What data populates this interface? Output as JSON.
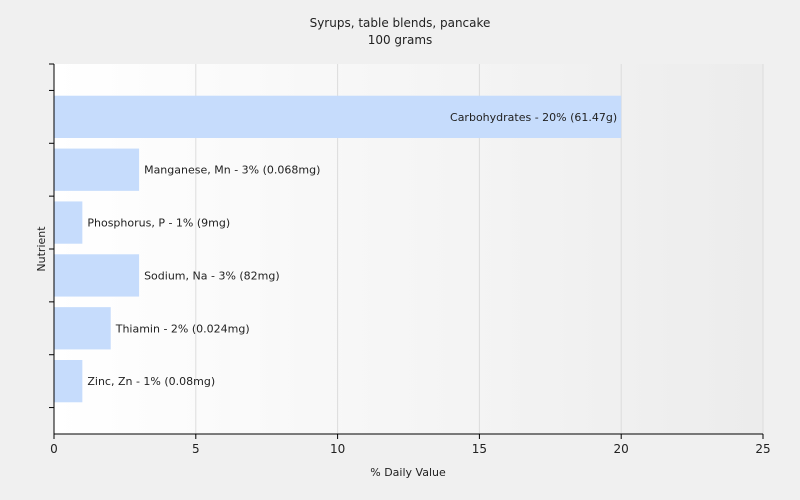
{
  "chart_data": {
    "type": "bar",
    "orientation": "horizontal",
    "title": "Syrups, table blends, pancake",
    "subtitle": "100 grams",
    "xlabel": "% Daily Value",
    "ylabel": "Nutrient",
    "xlim": [
      0,
      25
    ],
    "xticks": [
      "0",
      "5",
      "10",
      "15",
      "20",
      "25"
    ],
    "grid": true,
    "bar_color": "#c6dcfc",
    "categories": [
      "Carbohydrates",
      "Manganese, Mn",
      "Phosphorus, P",
      "Sodium, Na",
      "Thiamin",
      "Zinc, Zn"
    ],
    "values": [
      20,
      3,
      1,
      3,
      2,
      1
    ],
    "labels": [
      "Carbohydrates - 20% (61.47g)",
      "Manganese, Mn - 3% (0.068mg)",
      "Phosphorus, P - 1% (9mg)",
      "Sodium, Na - 3% (82mg)",
      "Thiamin - 2% (0.024mg)",
      "Zinc, Zn - 1% (0.08mg)"
    ]
  }
}
